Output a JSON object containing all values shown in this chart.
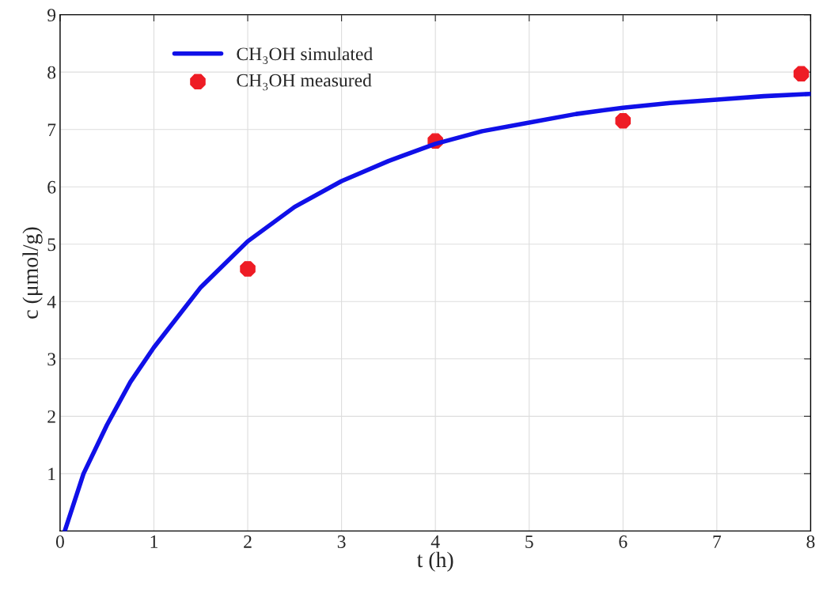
{
  "chart_data": {
    "type": "line",
    "xlabel": "t (h)",
    "ylabel": "c (μmol/g)",
    "xlim": [
      0,
      8
    ],
    "xticks": [
      0,
      1,
      2,
      3,
      4,
      5,
      6,
      7,
      8
    ],
    "ylim": [
      0,
      9
    ],
    "yticks": [
      1,
      2,
      3,
      4,
      5,
      6,
      7,
      8,
      9
    ],
    "grid": true,
    "legend": "top left",
    "series": [
      {
        "name": "CH₃OH simulated",
        "color": "#1010e8",
        "marker": "none",
        "line_style": "solid",
        "x": [
          0.05,
          0.25,
          0.5,
          0.75,
          1,
          1.5,
          2,
          2.5,
          3,
          3.5,
          4,
          4.5,
          5,
          5.5,
          6,
          6.5,
          7,
          7.5,
          8
        ],
        "values": [
          0,
          1.0,
          1.85,
          2.6,
          3.2,
          4.25,
          5.05,
          5.65,
          6.1,
          6.45,
          6.75,
          6.97,
          7.12,
          7.27,
          7.38,
          7.46,
          7.52,
          7.58,
          7.62
        ]
      },
      {
        "name": "CH₃OH measured",
        "type": "scatter",
        "color": "#ee1c25",
        "marker": "circle",
        "x": [
          2,
          4,
          6,
          7.9
        ],
        "values": [
          4.57,
          6.8,
          7.15,
          7.97
        ]
      }
    ]
  }
}
